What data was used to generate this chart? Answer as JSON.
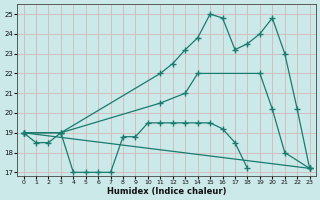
{
  "xlabel": "Humidex (Indice chaleur)",
  "bg_color": "#cce9e9",
  "line_color": "#1a7a6e",
  "grid_color": "#d4b8b8",
  "xlim": [
    -0.5,
    23.5
  ],
  "ylim": [
    16.8,
    25.5
  ],
  "yticks": [
    17,
    18,
    19,
    20,
    21,
    22,
    23,
    24,
    25
  ],
  "xticks": [
    0,
    1,
    2,
    3,
    4,
    5,
    6,
    7,
    8,
    9,
    10,
    11,
    12,
    13,
    14,
    15,
    16,
    17,
    18,
    19,
    20,
    21,
    22,
    23
  ],
  "series": [
    {
      "x": [
        0,
        1,
        2,
        3,
        4,
        5,
        6,
        7,
        8,
        9,
        10,
        11,
        12,
        13,
        14,
        15,
        16,
        17,
        18
      ],
      "y": [
        19.0,
        18.5,
        18.5,
        19.0,
        17.0,
        17.0,
        17.0,
        17.0,
        18.8,
        18.8,
        19.5,
        19.5,
        19.5,
        19.5,
        19.5,
        19.5,
        19.2,
        18.5,
        17.2
      ]
    },
    {
      "x": [
        0,
        23
      ],
      "y": [
        19.0,
        17.2
      ]
    },
    {
      "x": [
        0,
        3,
        11,
        13,
        14,
        19,
        20,
        21,
        23
      ],
      "y": [
        19.0,
        19.0,
        20.5,
        21.0,
        22.0,
        22.0,
        20.2,
        18.0,
        17.2
      ]
    },
    {
      "x": [
        0,
        3,
        11,
        12,
        13,
        14,
        15,
        16,
        17,
        18,
        19,
        20,
        21,
        22,
        23
      ],
      "y": [
        19.0,
        19.0,
        22.0,
        22.5,
        23.2,
        23.8,
        25.0,
        24.8,
        23.2,
        23.5,
        24.0,
        24.8,
        23.0,
        20.2,
        17.2
      ]
    }
  ]
}
